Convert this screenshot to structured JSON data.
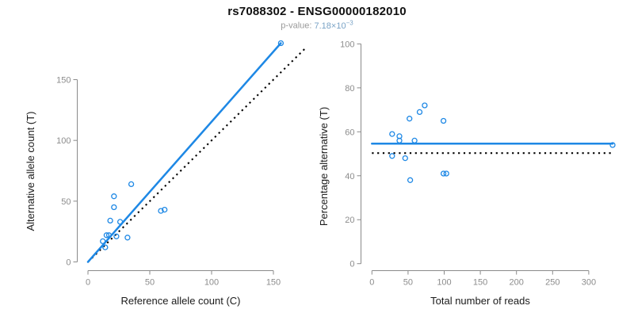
{
  "header": {
    "title": "rs7088302 - ENSG00000182010",
    "pvalue_label": "p-value:",
    "pvalue_mantissa": " 7.18×10",
    "pvalue_exponent": "−3"
  },
  "colors": {
    "accent_blue": "#1E88E5",
    "dotted_line": "#000000",
    "axis_gray": "#8a8a8a",
    "tick_label_gray": "#8c8c8c",
    "pvalue_blue": "#7aa3c6",
    "title_black": "#111111"
  },
  "chart_data": [
    {
      "type": "scatter",
      "name": "allele-counts",
      "xlabel": "Reference allele count (C)",
      "ylabel": "Alternative allele count (T)",
      "xlim": [
        0,
        175
      ],
      "ylim": [
        0,
        185
      ],
      "xticks": [
        0,
        50,
        100,
        150
      ],
      "yticks": [
        0,
        50,
        100,
        150
      ],
      "grid": false,
      "legend": "none",
      "points": [
        [
          156,
          180
        ],
        [
          35,
          64
        ],
        [
          21,
          54
        ],
        [
          21,
          45
        ],
        [
          18,
          34
        ],
        [
          26,
          33
        ],
        [
          59,
          42
        ],
        [
          62,
          43
        ],
        [
          15,
          22
        ],
        [
          17,
          22
        ],
        [
          23,
          21
        ],
        [
          32,
          20
        ],
        [
          12,
          17
        ],
        [
          14,
          12
        ]
      ],
      "lines": [
        {
          "name": "identity",
          "style": "dotted",
          "x1": 0,
          "y1": 0,
          "x2": 177,
          "y2": 177
        },
        {
          "name": "regression",
          "style": "solid",
          "x1": 0,
          "y1": 0,
          "x2": 156,
          "y2": 180
        }
      ]
    },
    {
      "type": "scatter",
      "name": "percentage-vs-reads",
      "xlabel": "Total number of reads",
      "ylabel": "Percentage alternative (T)",
      "xlim": [
        0,
        340
      ],
      "ylim": [
        0,
        100
      ],
      "xticks": [
        0,
        50,
        100,
        150,
        200,
        250,
        300
      ],
      "yticks": [
        0,
        20,
        40,
        60,
        80,
        100
      ],
      "grid": false,
      "legend": "none",
      "points": [
        [
          28,
          59
        ],
        [
          38,
          58
        ],
        [
          38,
          56
        ],
        [
          52,
          66
        ],
        [
          66,
          69
        ],
        [
          73,
          72
        ],
        [
          99,
          65
        ],
        [
          59,
          56
        ],
        [
          28,
          49
        ],
        [
          46,
          48
        ],
        [
          53,
          38
        ],
        [
          99,
          41
        ],
        [
          103,
          41
        ],
        [
          333,
          54
        ]
      ],
      "lines": [
        {
          "name": "expected",
          "style": "dotted",
          "x1": 0,
          "y1": 50.3,
          "x2": 331,
          "y2": 50.3
        },
        {
          "name": "fitted",
          "style": "solid",
          "x1": 0,
          "y1": 54.6,
          "x2": 333,
          "y2": 54.6
        }
      ]
    }
  ]
}
